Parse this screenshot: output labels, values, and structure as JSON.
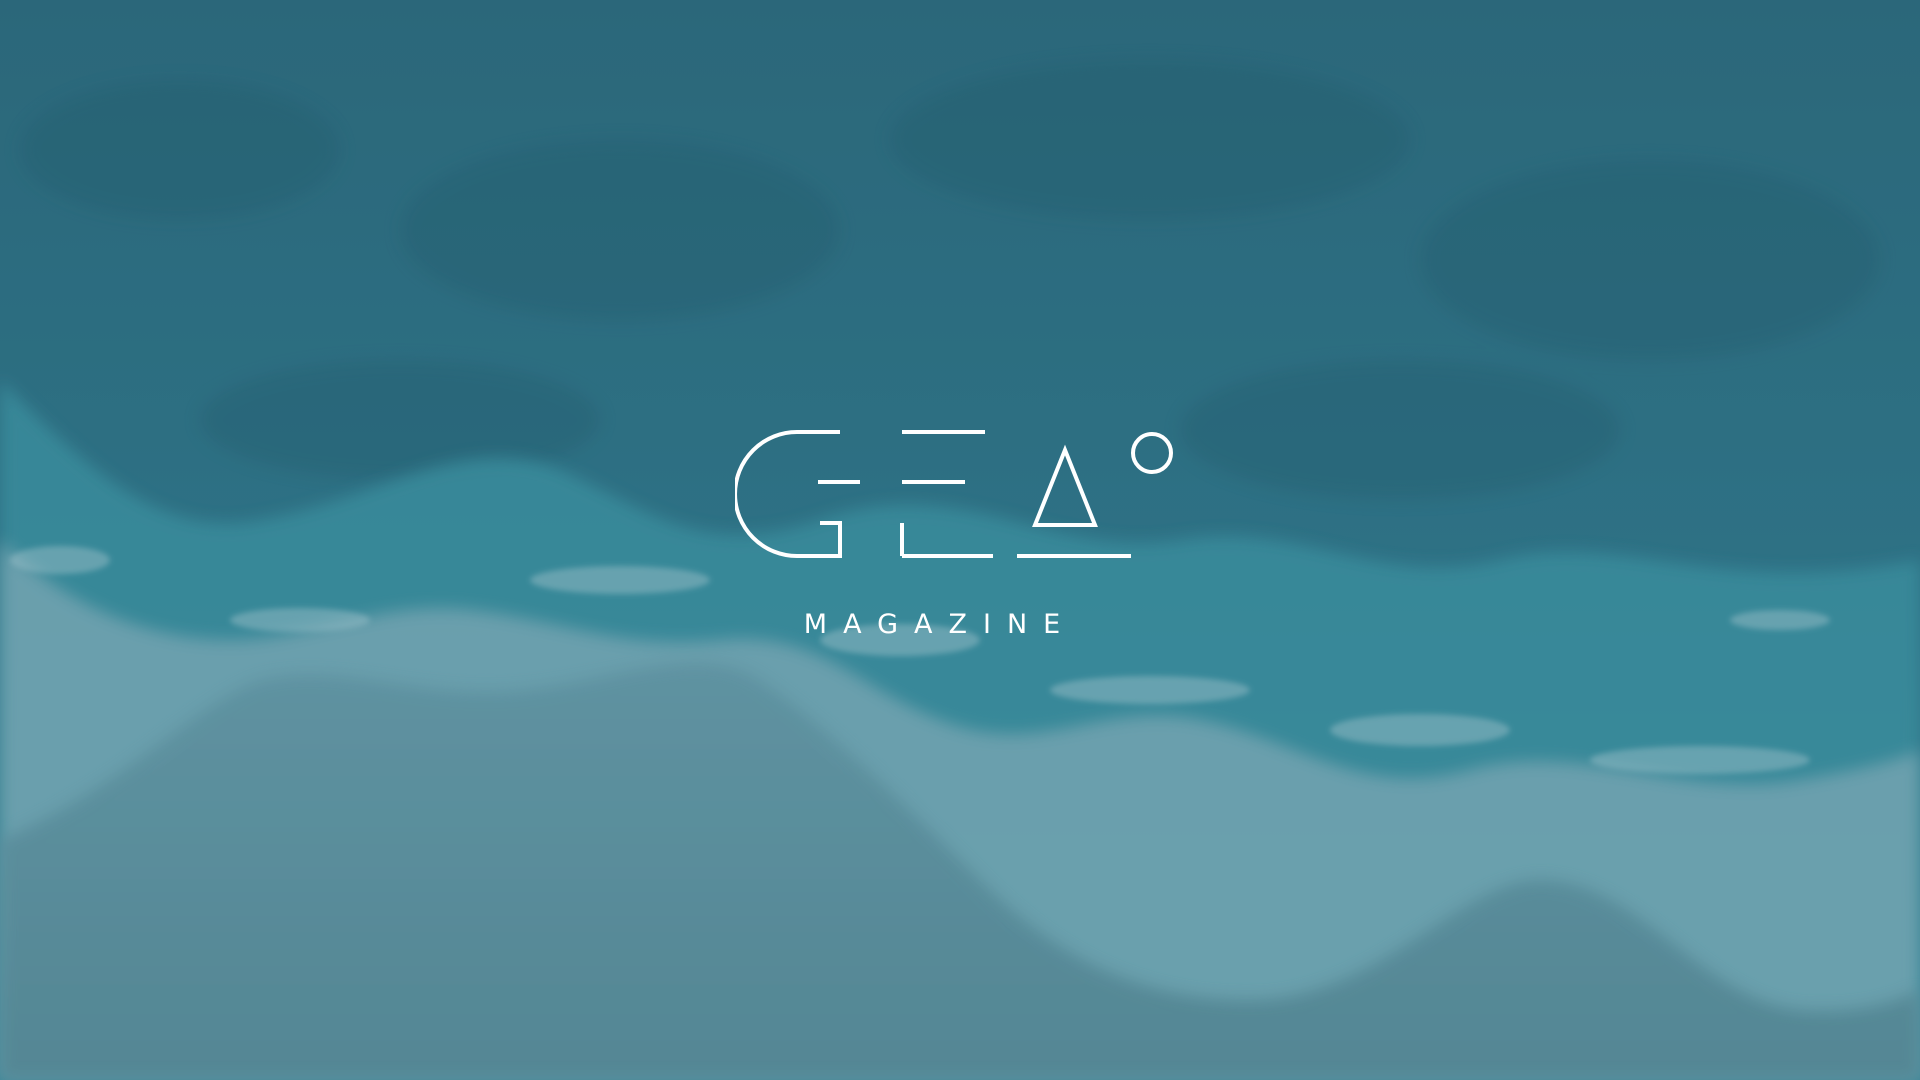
{
  "brand": {
    "wordmark": "GEA°",
    "subtitle": "MAGAZINE"
  },
  "colors": {
    "deep_sea": "#2e6d80",
    "turquoise": "#3a8f9f",
    "foam": "#8fb6c2",
    "sand": "#5f8f9b",
    "logo": "#ffffff"
  }
}
